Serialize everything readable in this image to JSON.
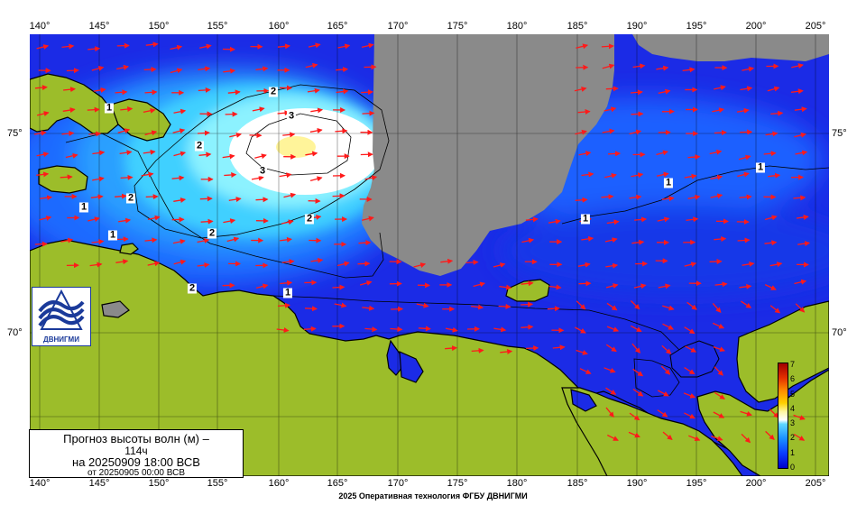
{
  "title": {
    "line1": "Прогноз высоты волн (м) –",
    "line2": "114ч",
    "line3": "на 20250909 18:00 ВСВ",
    "line4": "от 20250905 00:00 ВСВ"
  },
  "footer": "2025 Оперативная технология ФГБУ ДВНИГМИ",
  "logo": {
    "text": "ДВНИГМИ",
    "icon": "wave-logo-icon"
  },
  "axes": {
    "longitudes_top": [
      "140°",
      "145°",
      "150°",
      "155°",
      "160°",
      "165°",
      "170°",
      "175°",
      "180°",
      "185°",
      "190°",
      "195°",
      "200°",
      "205°"
    ],
    "longitudes_bottom": [
      "140°",
      "145°",
      "150°",
      "155°",
      "160°",
      "165°",
      "170°",
      "175°",
      "180°",
      "185°",
      "190°",
      "195°",
      "200°",
      "205°"
    ],
    "latitudes_left": [
      "75°",
      "70°"
    ],
    "latitudes_right": [
      "75°",
      "70°"
    ]
  },
  "colorbar": {
    "labels": [
      "7",
      "6",
      "5",
      "4",
      "3",
      "2",
      "1",
      "0"
    ],
    "min": 0,
    "max": 7
  },
  "contour_labels": [
    "3",
    "3",
    "2",
    "2",
    "2",
    "2",
    "2",
    "2",
    "1",
    "1",
    "1",
    "1",
    "1",
    "1",
    "1"
  ],
  "colors": {
    "land": "#9cbd2a",
    "masked": "#8a8a8a",
    "arrow": "#ff1a1a",
    "deep_wave": "#1b2be6"
  }
}
